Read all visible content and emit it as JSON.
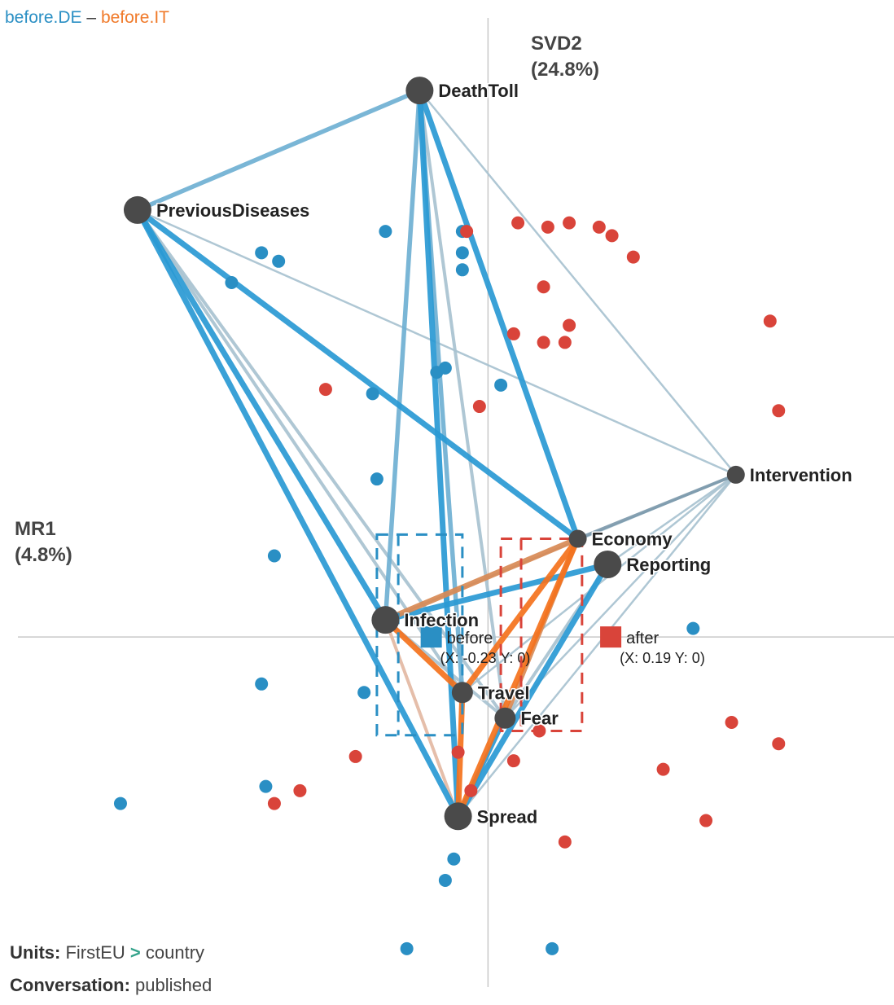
{
  "title": {
    "group_a": "before.DE",
    "separator": "–",
    "group_b": "before.IT"
  },
  "axes": {
    "y_label": "SVD2",
    "y_pct": "(24.8%)",
    "x_label": "MR1",
    "x_pct": "(4.8%)"
  },
  "footer": {
    "units_key": "Units:",
    "units_a": "FirstEU",
    "units_sep": ">",
    "units_b": "country",
    "conv_key": "Conversation:",
    "conv_value": "published"
  },
  "colors": {
    "before": "#2a8fc4",
    "after": "#d9443a",
    "edge_blue": "#2a9ad4",
    "edge_orange": "#f5721d",
    "node": "#4a4a4a"
  },
  "chart_data": {
    "type": "scatter",
    "x_axis": "MR1",
    "y_axis": "SVD2",
    "xlim": [
      -1.1,
      0.95
    ],
    "ylim": [
      -0.82,
      1.45
    ],
    "grid": false,
    "nodes": [
      {
        "name": "DeathToll",
        "x": -0.16,
        "y": 1.28,
        "size": "large"
      },
      {
        "name": "PreviousDiseases",
        "x": -0.82,
        "y": 1.0,
        "size": "large"
      },
      {
        "name": "Intervention",
        "x": 0.58,
        "y": 0.38,
        "size": "small"
      },
      {
        "name": "Economy",
        "x": 0.21,
        "y": 0.23,
        "size": "small"
      },
      {
        "name": "Reporting",
        "x": 0.28,
        "y": 0.17,
        "size": "large"
      },
      {
        "name": "Infection",
        "x": -0.24,
        "y": 0.04,
        "size": "large"
      },
      {
        "name": "Travel",
        "x": -0.06,
        "y": -0.13,
        "size": "medium"
      },
      {
        "name": "Fear",
        "x": 0.04,
        "y": -0.19,
        "size": "medium"
      },
      {
        "name": "Spread",
        "x": -0.07,
        "y": -0.42,
        "size": "large"
      }
    ],
    "edges": [
      {
        "from": "DeathToll",
        "to": "PreviousDiseases",
        "weight": 3,
        "color": "blue-light"
      },
      {
        "from": "DeathToll",
        "to": "Infection",
        "weight": 3,
        "color": "blue-light"
      },
      {
        "from": "DeathToll",
        "to": "Spread",
        "weight": 4,
        "color": "blue"
      },
      {
        "from": "DeathToll",
        "to": "Travel",
        "weight": 3,
        "color": "blue-light"
      },
      {
        "from": "DeathToll",
        "to": "Fear",
        "weight": 2,
        "color": "grey"
      },
      {
        "from": "DeathToll",
        "to": "Economy",
        "weight": 4,
        "color": "blue"
      },
      {
        "from": "DeathToll",
        "to": "Intervention",
        "weight": 1,
        "color": "grey"
      },
      {
        "from": "PreviousDiseases",
        "to": "Infection",
        "weight": 4,
        "color": "blue"
      },
      {
        "from": "PreviousDiseases",
        "to": "Spread",
        "weight": 4,
        "color": "blue"
      },
      {
        "from": "PreviousDiseases",
        "to": "Economy",
        "weight": 4,
        "color": "blue"
      },
      {
        "from": "PreviousDiseases",
        "to": "Travel",
        "weight": 2,
        "color": "grey"
      },
      {
        "from": "PreviousDiseases",
        "to": "Fear",
        "weight": 2,
        "color": "grey"
      },
      {
        "from": "PreviousDiseases",
        "to": "Intervention",
        "weight": 1,
        "color": "grey"
      },
      {
        "from": "Intervention",
        "to": "Economy",
        "weight": 2,
        "color": "slate"
      },
      {
        "from": "Intervention",
        "to": "Reporting",
        "weight": 1,
        "color": "grey"
      },
      {
        "from": "Intervention",
        "to": "Infection",
        "weight": 1,
        "color": "grey"
      },
      {
        "from": "Intervention",
        "to": "Travel",
        "weight": 1,
        "color": "grey"
      },
      {
        "from": "Intervention",
        "to": "Fear",
        "weight": 1,
        "color": "grey"
      },
      {
        "from": "Intervention",
        "to": "Spread",
        "weight": 1,
        "color": "grey"
      },
      {
        "from": "Economy",
        "to": "Infection",
        "weight": 4,
        "color": "orange-muted"
      },
      {
        "from": "Economy",
        "to": "Spread",
        "weight": 4,
        "color": "orange"
      },
      {
        "from": "Economy",
        "to": "Travel",
        "weight": 4,
        "color": "orange"
      },
      {
        "from": "Economy",
        "to": "Fear",
        "weight": 3,
        "color": "orange-muted"
      },
      {
        "from": "Reporting",
        "to": "Infection",
        "weight": 4,
        "color": "blue"
      },
      {
        "from": "Reporting",
        "to": "Spread",
        "weight": 4,
        "color": "blue"
      },
      {
        "from": "Reporting",
        "to": "Fear",
        "weight": 2,
        "color": "grey"
      },
      {
        "from": "Infection",
        "to": "Travel",
        "weight": 4,
        "color": "orange"
      },
      {
        "from": "Infection",
        "to": "Spread",
        "weight": 2,
        "color": "orange-light"
      },
      {
        "from": "Infection",
        "to": "Fear",
        "weight": 2,
        "color": "grey"
      },
      {
        "from": "Travel",
        "to": "Spread",
        "weight": 4,
        "color": "orange"
      },
      {
        "from": "Fear",
        "to": "Spread",
        "weight": 3,
        "color": "blue"
      }
    ],
    "points": {
      "before": [
        [
          -0.6,
          0.83
        ],
        [
          -0.49,
          0.88
        ],
        [
          -0.53,
          0.9
        ],
        [
          -0.24,
          0.95
        ],
        [
          -0.06,
          0.95
        ],
        [
          -0.06,
          0.9
        ],
        [
          -0.06,
          0.86
        ],
        [
          -0.12,
          0.62
        ],
        [
          -0.1,
          0.63
        ],
        [
          -0.27,
          0.57
        ],
        [
          0.03,
          0.59
        ],
        [
          -0.26,
          0.37
        ],
        [
          -0.5,
          0.19
        ],
        [
          0.48,
          0.02
        ],
        [
          -0.53,
          -0.11
        ],
        [
          -0.29,
          -0.13
        ],
        [
          -0.52,
          -0.35
        ],
        [
          -0.86,
          -0.39
        ],
        [
          -0.08,
          -0.52
        ],
        [
          -0.1,
          -0.57
        ],
        [
          -0.19,
          -0.73
        ],
        [
          0.15,
          -0.73
        ]
      ],
      "after": [
        [
          -0.05,
          0.95
        ],
        [
          0.07,
          0.97
        ],
        [
          0.14,
          0.96
        ],
        [
          0.19,
          0.97
        ],
        [
          0.26,
          0.96
        ],
        [
          0.29,
          0.94
        ],
        [
          0.34,
          0.89
        ],
        [
          0.13,
          0.82
        ],
        [
          0.19,
          0.73
        ],
        [
          0.06,
          0.71
        ],
        [
          0.13,
          0.69
        ],
        [
          0.18,
          0.69
        ],
        [
          0.66,
          0.74
        ],
        [
          -0.38,
          0.58
        ],
        [
          -0.02,
          0.54
        ],
        [
          0.68,
          0.53
        ],
        [
          0.57,
          -0.2
        ],
        [
          0.68,
          -0.25
        ],
        [
          0.12,
          -0.22
        ],
        [
          -0.07,
          -0.27
        ],
        [
          0.06,
          -0.29
        ],
        [
          0.41,
          -0.31
        ],
        [
          -0.31,
          -0.28
        ],
        [
          -0.44,
          -0.36
        ],
        [
          -0.04,
          -0.36
        ],
        [
          -0.5,
          -0.39
        ],
        [
          0.51,
          -0.43
        ],
        [
          0.18,
          -0.48
        ]
      ]
    },
    "group_means": [
      {
        "name": "before",
        "x": -0.23,
        "y": 0,
        "coord_text": "(X: -0.23 Y: 0)",
        "color": "#2a8fc4",
        "box": {
          "x0": -0.26,
          "x1": -0.06,
          "y0": -0.23,
          "y1": 0.24
        }
      },
      {
        "name": "after",
        "x": 0.19,
        "y": 0,
        "coord_text": "(X: 0.19 Y: 0)",
        "color": "#d9443a",
        "box": {
          "x0": 0.03,
          "x1": 0.22,
          "y0": -0.22,
          "y1": 0.23
        }
      }
    ]
  }
}
